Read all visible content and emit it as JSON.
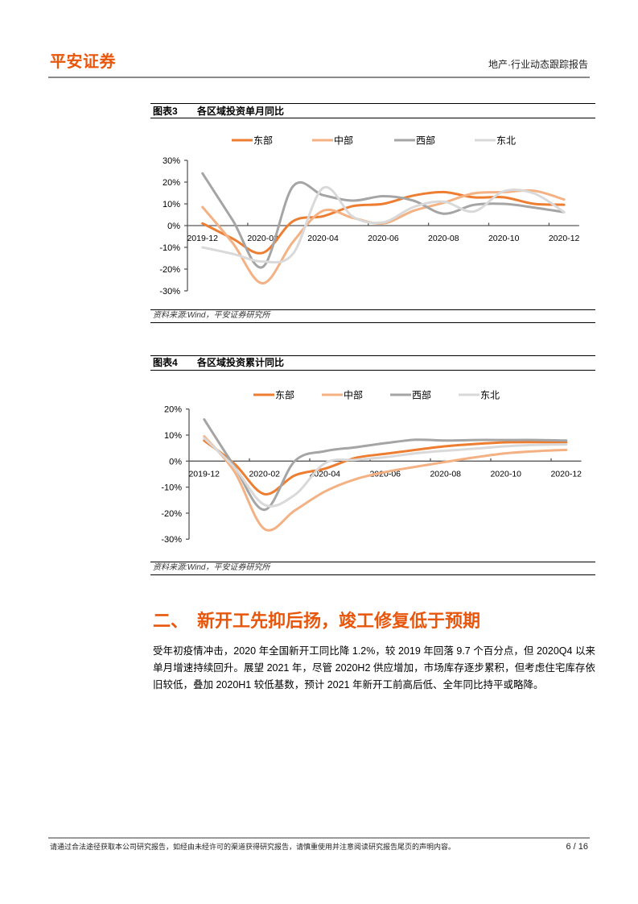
{
  "header": {
    "logo": "平安证券",
    "report_type": "地产·行业动态跟踪报告"
  },
  "figures": [
    {
      "label": "图表3",
      "title": "各区域投资单月同比",
      "source": "资料来源:Wind，平安证券研究所"
    },
    {
      "label": "图表4",
      "title": "各区域投资累计同比",
      "source": "资料来源:Wind，平安证券研究所"
    }
  ],
  "section": {
    "number": "二、",
    "title": "新开工先抑后扬，竣工修复低于预期"
  },
  "paragraph": {
    "lines": [
      "受年初疫情冲击，2020 年全国新开工同比降 1.2%，较 2019 年回落 9.7 个百分点，但 2020Q4 以来",
      "单月增速持续回升。展望 2021 年，尽管 2020H2 供应增加，市场库存逐步累积，但考虑住宅库存依",
      "旧较低，叠加 2020H1 较低基数，预计 2021 年新开工前高后低、全年同比持平或略降。"
    ]
  },
  "footer": {
    "disclaimer": "请通过合法途径获取本公司研究报告，如经由未经许可的渠道获得研究报告，请慎重使用并注意阅读研究报告尾页的声明内容。",
    "page": "6 / 16"
  },
  "colors": {
    "brand": "#E8560C",
    "east": "#ED7D31",
    "central": "#F4B183",
    "west": "#A5A5A5",
    "northeast": "#D9D9D9"
  },
  "chart_data": [
    {
      "type": "line",
      "title": "各区域投资单月同比",
      "xlabel": "",
      "ylabel": "",
      "categories": [
        "2019-12",
        "2020-01",
        "2020-02",
        "2020-03",
        "2020-04",
        "2020-05",
        "2020-06",
        "2020-07",
        "2020-08",
        "2020-09",
        "2020-10",
        "2020-11",
        "2020-12"
      ],
      "xticklabels": [
        "2019-12",
        "2020-02",
        "2020-04",
        "2020-06",
        "2020-08",
        "2020-10",
        "2020-12"
      ],
      "yticks": [
        30,
        20,
        10,
        0,
        -10,
        -20,
        -30
      ],
      "yticklabels": [
        "30%",
        "20%",
        "10%",
        "0%",
        "-10%",
        "-20%",
        "-30%"
      ],
      "ylim": [
        -30,
        30
      ],
      "grid": false,
      "legend_position": "top",
      "unit": "%",
      "series": [
        {
          "name": "东部",
          "color": "#ED7D31",
          "values": [
            1,
            -6,
            -12.5,
            2,
            4.3,
            9,
            10,
            13.8,
            15.4,
            13,
            13,
            10,
            9.6
          ]
        },
        {
          "name": "中部",
          "color": "#F4B183",
          "values": [
            8.5,
            -8,
            -26.5,
            -7.5,
            6.8,
            3.5,
            1,
            6.8,
            10.5,
            14.8,
            15.4,
            16,
            12
          ]
        },
        {
          "name": "西部",
          "color": "#A5A5A5",
          "values": [
            24,
            2.5,
            -19,
            18,
            14,
            11.5,
            13.5,
            11.5,
            5.5,
            9.5,
            10,
            8.3,
            6.2
          ]
        },
        {
          "name": "东北",
          "color": "#D9D9D9",
          "values": [
            -10,
            -13,
            -16.5,
            -13,
            17.3,
            4,
            1.5,
            8.5,
            11,
            6.5,
            15.8,
            14.8,
            6.2
          ]
        }
      ]
    },
    {
      "type": "line",
      "title": "各区域投资累计同比",
      "xlabel": "",
      "ylabel": "",
      "categories": [
        "2019-12",
        "2020-01",
        "2020-02",
        "2020-03",
        "2020-04",
        "2020-05",
        "2020-06",
        "2020-07",
        "2020-08",
        "2020-09",
        "2020-10",
        "2020-11",
        "2020-12"
      ],
      "xticklabels": [
        "2019-12",
        "2020-02",
        "2020-04",
        "2020-06",
        "2020-08",
        "2020-10",
        "2020-12"
      ],
      "yticks": [
        20,
        10,
        0,
        -10,
        -20,
        -30
      ],
      "yticklabels": [
        "20%",
        "10%",
        "0%",
        "-10%",
        "-20%",
        "-30%"
      ],
      "ylim": [
        -30,
        20
      ],
      "grid": false,
      "legend_position": "top",
      "unit": "%",
      "series": [
        {
          "name": "东部",
          "color": "#ED7D31",
          "values": [
            7.9,
            -1,
            -12.7,
            -5.5,
            -2.9,
            1.2,
            2.8,
            4.3,
            5.7,
            6.6,
            7.2,
            7.3,
            7.3
          ]
        },
        {
          "name": "中部",
          "color": "#F4B183",
          "values": [
            9.5,
            -4,
            -26.1,
            -19,
            -11.7,
            -7,
            -4.2,
            -2.2,
            -0.3,
            1.5,
            3,
            3.8,
            4.3
          ]
        },
        {
          "name": "西部",
          "color": "#A5A5A5",
          "values": [
            16,
            -2,
            -18.7,
            0,
            3.8,
            5.3,
            6.9,
            8.2,
            7.9,
            8.1,
            8.1,
            8.1,
            7.9
          ]
        },
        {
          "name": "东北",
          "color": "#D9D9D9",
          "values": [
            8.8,
            -2.4,
            -16.8,
            -13,
            -0.8,
            0.5,
            1.5,
            3,
            4,
            4.8,
            5.7,
            6.2,
            6.4
          ]
        }
      ]
    }
  ]
}
